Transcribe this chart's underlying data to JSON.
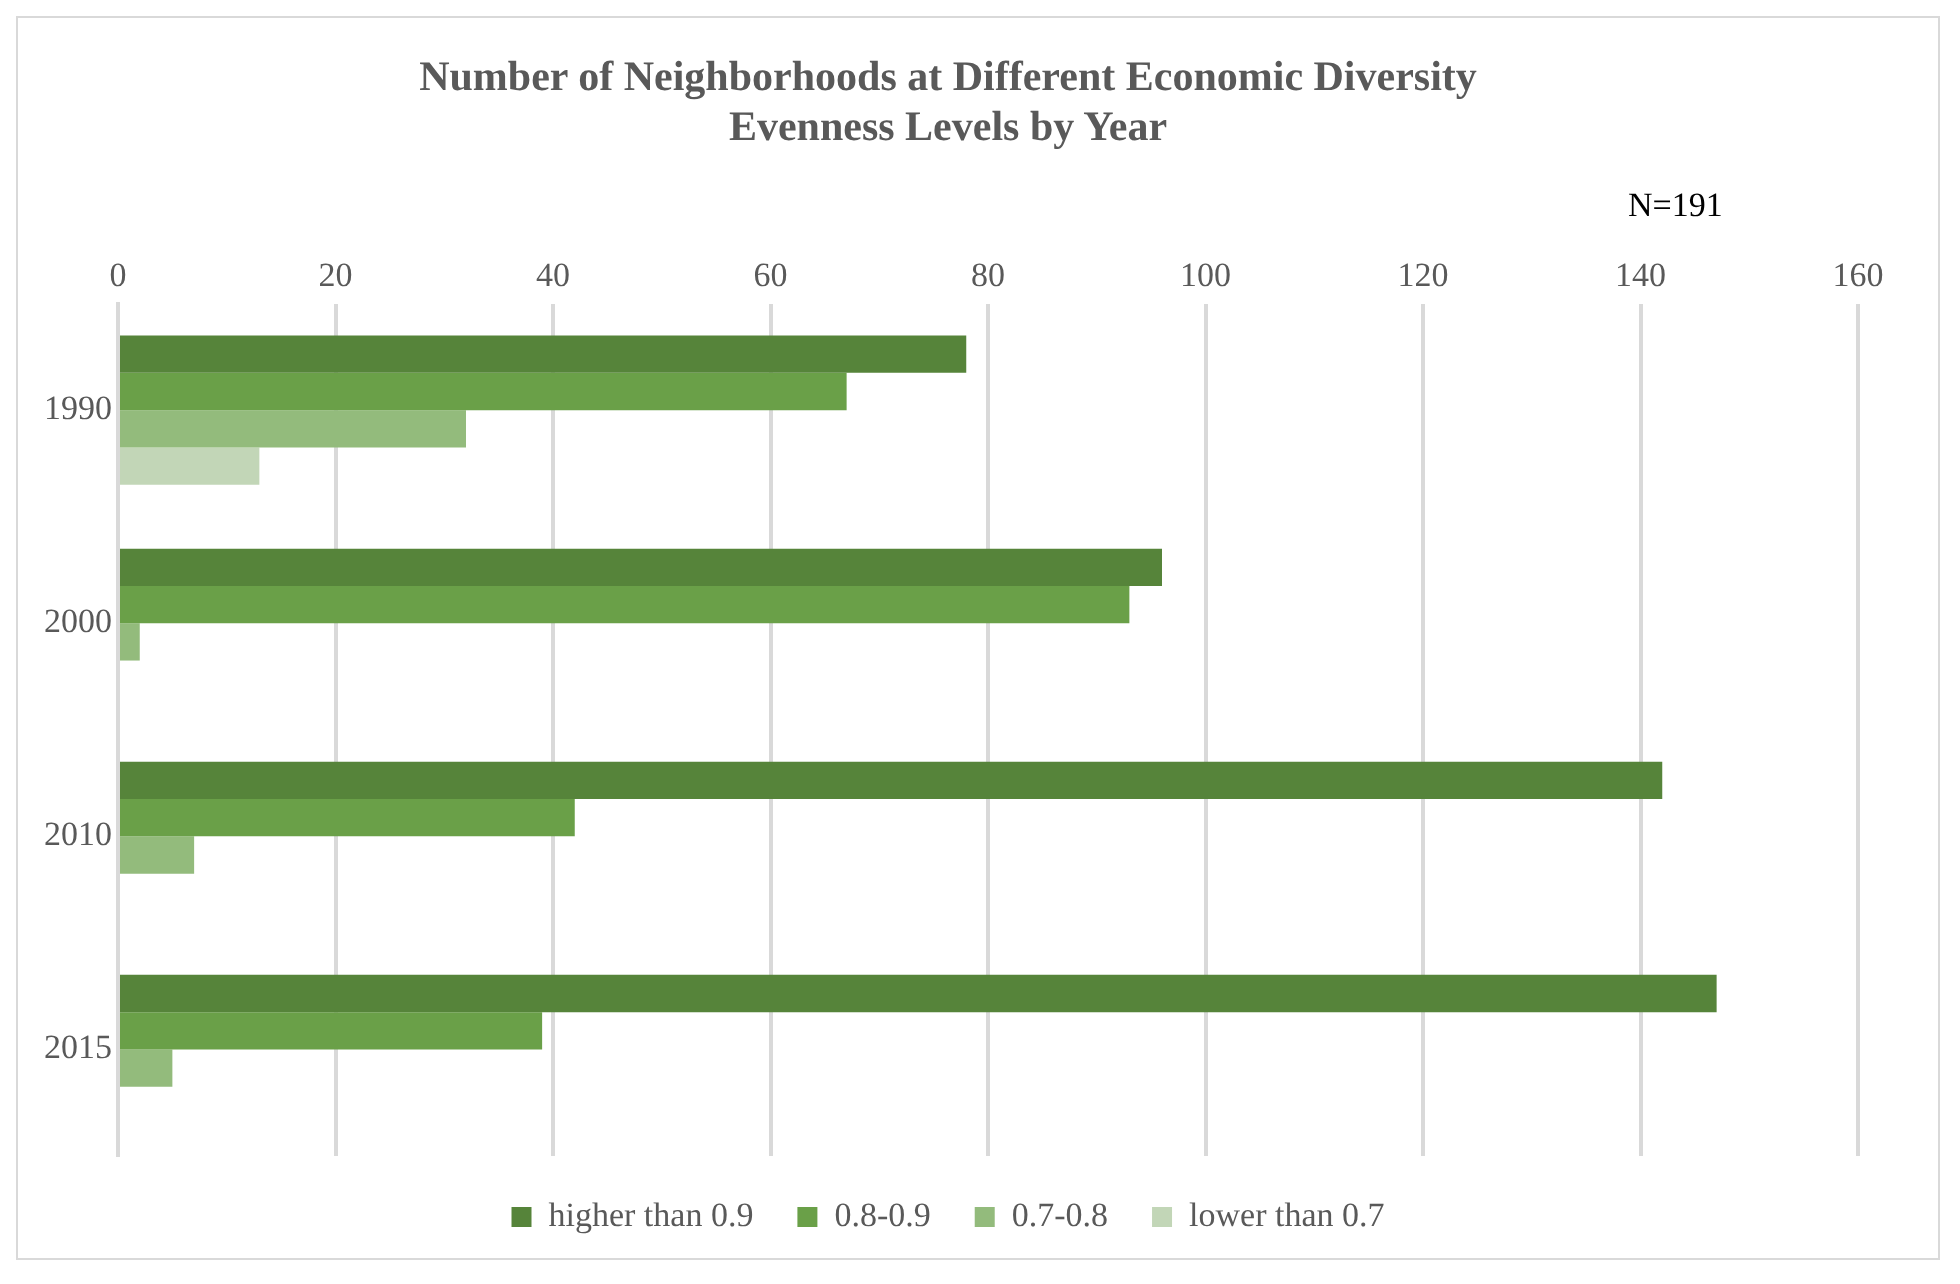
{
  "chart_data": {
    "type": "bar",
    "orientation": "horizontal",
    "title": "Number of Neighborhoods at Different Economic Diversity Evenness Levels by Year",
    "annotations": [
      "N=191"
    ],
    "categories": [
      "1990",
      "2000",
      "2010",
      "2015"
    ],
    "series": [
      {
        "name": "higher than 0.9",
        "color": "#56843a",
        "values": [
          78,
          96,
          142,
          147
        ]
      },
      {
        "name": "0.8-0.9",
        "color": "#6aa048",
        "values": [
          67,
          93,
          42,
          39
        ]
      },
      {
        "name": "0.7-0.8",
        "color": "#93bb7c",
        "values": [
          32,
          2,
          7,
          5
        ]
      },
      {
        "name": "lower than 0.7",
        "color": "#c2d6b7",
        "values": [
          13,
          0,
          0,
          0
        ]
      }
    ],
    "xlim": [
      0,
      160
    ],
    "xticks": [
      0,
      20,
      40,
      60,
      80,
      100,
      120,
      140,
      160
    ],
    "grid": "x",
    "legend": "bottom"
  }
}
